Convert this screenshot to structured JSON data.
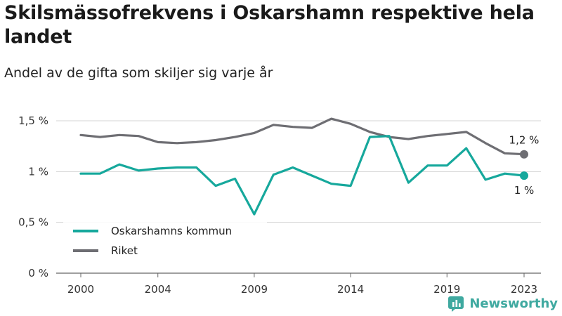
{
  "brand": {
    "name": "Newsworthy",
    "color": "#3fa9a0"
  },
  "chart_data": {
    "type": "line",
    "title": "Skilsmässofrekvens i Oskarshamn respektive hela landet",
    "subtitle": "Andel av de gifta som skiljer sig varje år",
    "x": [
      2000,
      2001,
      2002,
      2003,
      2004,
      2005,
      2006,
      2007,
      2008,
      2009,
      2010,
      2011,
      2012,
      2013,
      2014,
      2015,
      2016,
      2017,
      2018,
      2019,
      2020,
      2021,
      2022,
      2023
    ],
    "x_ticks": [
      2000,
      2004,
      2009,
      2014,
      2019,
      2023
    ],
    "x_tick_labels": [
      "2000",
      "2004",
      "2009",
      "2014",
      "2019",
      "2023"
    ],
    "xlim": [
      2000,
      2023
    ],
    "ylim": [
      0,
      1.5
    ],
    "y_ticks": [
      0,
      0.5,
      1,
      1.5
    ],
    "y_tick_labels": [
      "0 %",
      "0,5 %",
      "1 %",
      "1,5 %"
    ],
    "grid": "horizontal",
    "legend_position": "bottom-left",
    "series": [
      {
        "name": "Oskarshamns kommun",
        "color": "#16a89c",
        "values": [
          0.98,
          0.98,
          1.07,
          1.01,
          1.03,
          1.04,
          1.04,
          0.86,
          0.93,
          0.58,
          0.97,
          1.04,
          0.96,
          0.88,
          0.86,
          1.34,
          1.35,
          0.89,
          1.06,
          1.06,
          1.23,
          0.92,
          0.98,
          0.96
        ],
        "end_label": "1 %"
      },
      {
        "name": "Riket",
        "color": "#6e6e73",
        "values": [
          1.36,
          1.34,
          1.36,
          1.35,
          1.29,
          1.28,
          1.29,
          1.31,
          1.34,
          1.38,
          1.46,
          1.44,
          1.43,
          1.52,
          1.47,
          1.39,
          1.34,
          1.32,
          1.35,
          1.37,
          1.39,
          1.28,
          1.18,
          1.17
        ],
        "end_label": "1,2 %"
      }
    ]
  }
}
